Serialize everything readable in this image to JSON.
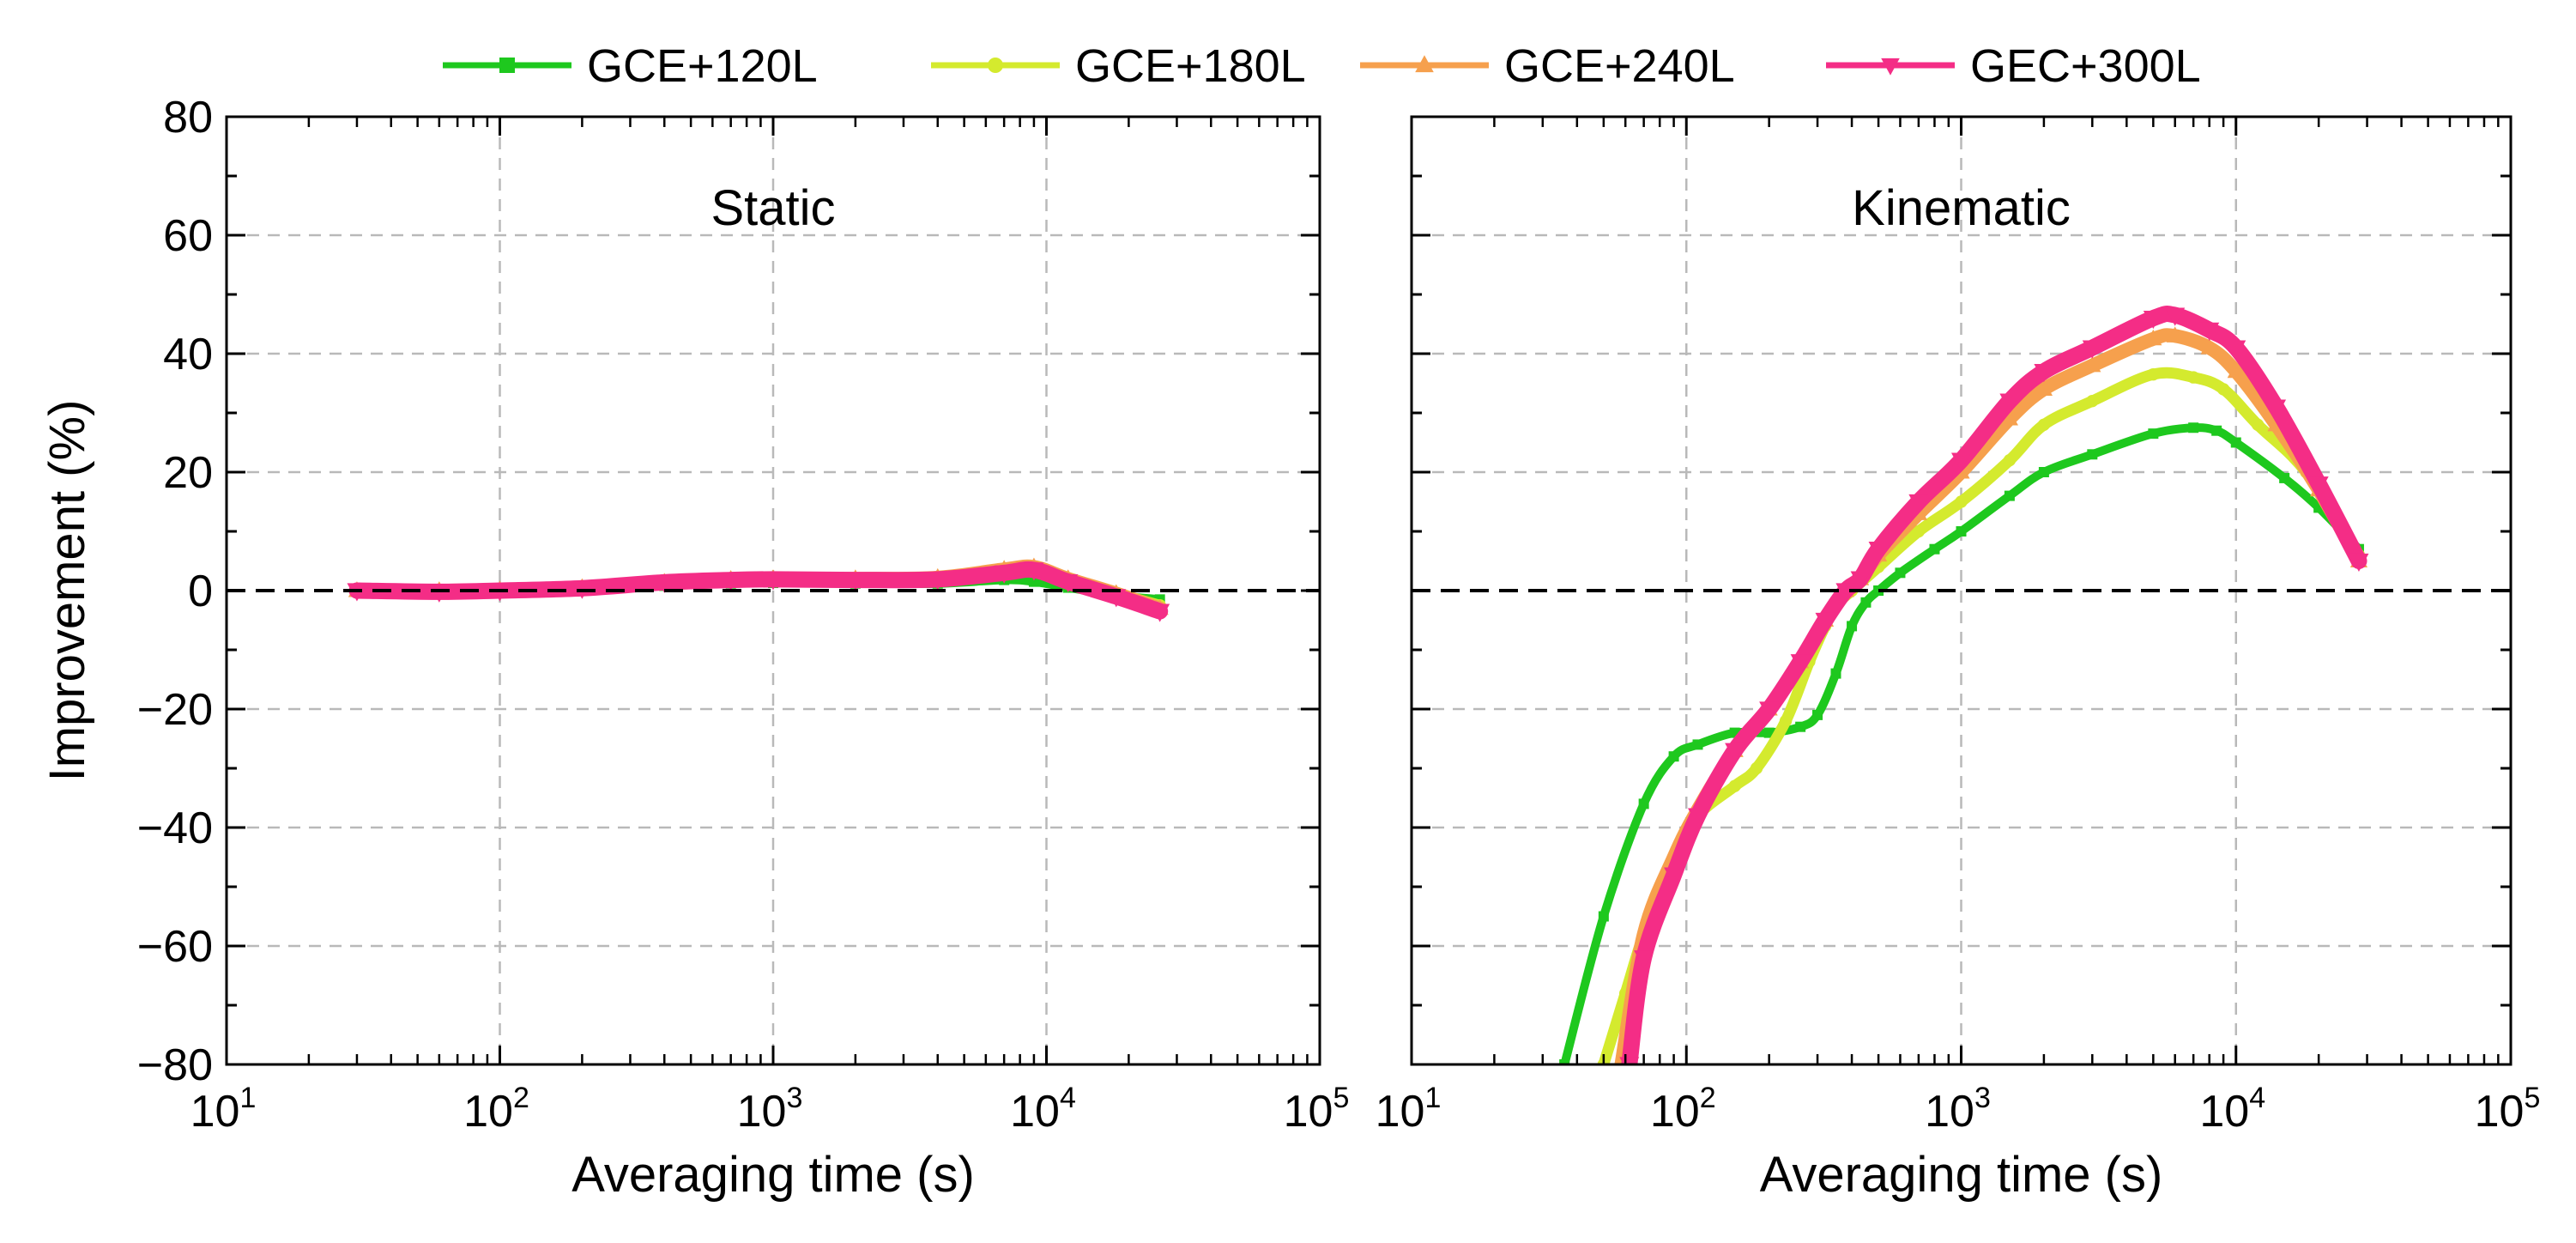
{
  "chart_data": [
    {
      "type": "line",
      "title": "Static",
      "xlabel": "Averaging time (s)",
      "ylabel": "Improvement (%)",
      "xscale": "log",
      "xlim": [
        10,
        100000
      ],
      "ylim": [
        -80,
        80
      ],
      "xticks": [
        {
          "base": "10",
          "exp": "1"
        },
        {
          "base": "10",
          "exp": "2"
        },
        {
          "base": "10",
          "exp": "3"
        },
        {
          "base": "10",
          "exp": "4"
        },
        {
          "base": "10",
          "exp": "5"
        }
      ],
      "yticks": [
        "80",
        "60",
        "40",
        "20",
        "0",
        "−20",
        "−40",
        "−60",
        "−80"
      ],
      "grid": true,
      "reference_line": 0,
      "series": [
        {
          "name": "GCE+120L",
          "x": [
            30,
            60,
            100,
            200,
            400,
            700,
            1000,
            2000,
            4000,
            7000,
            9000,
            12000,
            18000,
            26000
          ],
          "y": [
            0,
            0,
            0,
            0.2,
            0.8,
            1.2,
            1.3,
            1.2,
            1.2,
            1.8,
            1.5,
            0.5,
            -0.8,
            -1.5
          ]
        },
        {
          "name": "GCE+180L",
          "x": [
            30,
            60,
            100,
            200,
            400,
            700,
            1000,
            2000,
            4000,
            7000,
            9000,
            12000,
            18000,
            26000
          ],
          "y": [
            0,
            0,
            0.1,
            0.4,
            1.2,
            1.6,
            1.8,
            1.7,
            1.8,
            2.8,
            3.2,
            1.5,
            -0.5,
            -2.5
          ]
        },
        {
          "name": "GCE+240L",
          "x": [
            30,
            60,
            100,
            200,
            400,
            700,
            1000,
            2000,
            4000,
            7000,
            9000,
            12000,
            18000,
            26000
          ],
          "y": [
            0,
            0,
            0.1,
            0.5,
            1.4,
            1.9,
            2.0,
            2.0,
            2.2,
            3.6,
            4.0,
            2.0,
            -0.5,
            -3.0
          ]
        },
        {
          "name": "GEC+300L",
          "x": [
            30,
            60,
            100,
            200,
            400,
            700,
            1000,
            2000,
            4000,
            7000,
            9000,
            12000,
            18000,
            26000
          ],
          "y": [
            0,
            -0.2,
            0,
            0.4,
            1.4,
            1.8,
            1.9,
            1.8,
            1.9,
            3.0,
            3.5,
            1.5,
            -1.0,
            -3.5
          ]
        }
      ]
    },
    {
      "type": "line",
      "title": "Kinematic",
      "xlabel": "Averaging time (s)",
      "xscale": "log",
      "xlim": [
        10,
        100000
      ],
      "ylim": [
        -80,
        80
      ],
      "xticks": [
        {
          "base": "10",
          "exp": "1"
        },
        {
          "base": "10",
          "exp": "2"
        },
        {
          "base": "10",
          "exp": "3"
        },
        {
          "base": "10",
          "exp": "4"
        },
        {
          "base": "10",
          "exp": "5"
        }
      ],
      "grid": true,
      "reference_line": 0,
      "series": [
        {
          "name": "GCE+120L",
          "x": [
            36,
            50,
            70,
            90,
            110,
            150,
            200,
            260,
            300,
            350,
            400,
            450,
            500,
            600,
            800,
            1000,
            1500,
            2000,
            3000,
            5000,
            7000,
            8500,
            10000,
            15000,
            20000,
            28000
          ],
          "y": [
            -80,
            -55,
            -36,
            -28,
            -26,
            -24,
            -24,
            -23,
            -21,
            -14,
            -6,
            -2,
            0,
            3,
            7,
            10,
            16,
            20,
            23,
            26.5,
            27.5,
            27,
            25,
            19,
            14,
            7
          ]
        },
        {
          "name": "GCE+180L",
          "x": [
            50,
            60,
            70,
            90,
            110,
            150,
            180,
            230,
            280,
            320,
            360,
            400,
            500,
            700,
            1000,
            1500,
            2000,
            3000,
            5000,
            7000,
            9000,
            12000,
            18000,
            28000
          ],
          "y": [
            -80,
            -68,
            -58,
            -45,
            -38,
            -33,
            -30,
            -22,
            -12,
            -6,
            -2,
            0,
            4,
            10,
            15,
            22,
            28,
            32,
            36.5,
            36,
            34,
            28,
            20,
            6
          ]
        },
        {
          "name": "GCE+240L",
          "x": [
            58,
            70,
            90,
            110,
            150,
            200,
            260,
            320,
            380,
            430,
            500,
            700,
            1000,
            1500,
            2000,
            3000,
            5000,
            6000,
            8000,
            10000,
            14000,
            20000,
            28000
          ],
          "y": [
            -80,
            -58,
            -45,
            -37,
            -27,
            -20,
            -12,
            -5,
            0,
            2,
            6,
            13,
            20,
            29,
            34,
            38,
            42.5,
            43,
            41,
            37,
            28,
            17,
            5
          ]
        },
        {
          "name": "GEC+300L",
          "x": [
            62,
            70,
            90,
            110,
            150,
            200,
            260,
            320,
            380,
            430,
            500,
            700,
            1000,
            1500,
            2000,
            3000,
            5000,
            6000,
            8000,
            10000,
            14000,
            20000,
            28000
          ],
          "y": [
            -80,
            -62,
            -48,
            -38,
            -27,
            -20,
            -12,
            -5,
            0,
            2,
            7,
            15,
            22,
            32,
            37,
            41,
            46,
            46.5,
            44,
            41,
            31,
            18,
            5
          ]
        }
      ]
    }
  ],
  "legend": {
    "placement": "top",
    "items": [
      {
        "label": "GCE+120L",
        "color": "#1ec81e",
        "marker": "square"
      },
      {
        "label": "GCE+180L",
        "color": "#d4ea2e",
        "marker": "circle"
      },
      {
        "label": "GCE+240L",
        "color": "#f6a04d",
        "marker": "triangle-up"
      },
      {
        "label": "GEC+300L",
        "color": "#f42d86",
        "marker": "triangle-down"
      }
    ]
  }
}
